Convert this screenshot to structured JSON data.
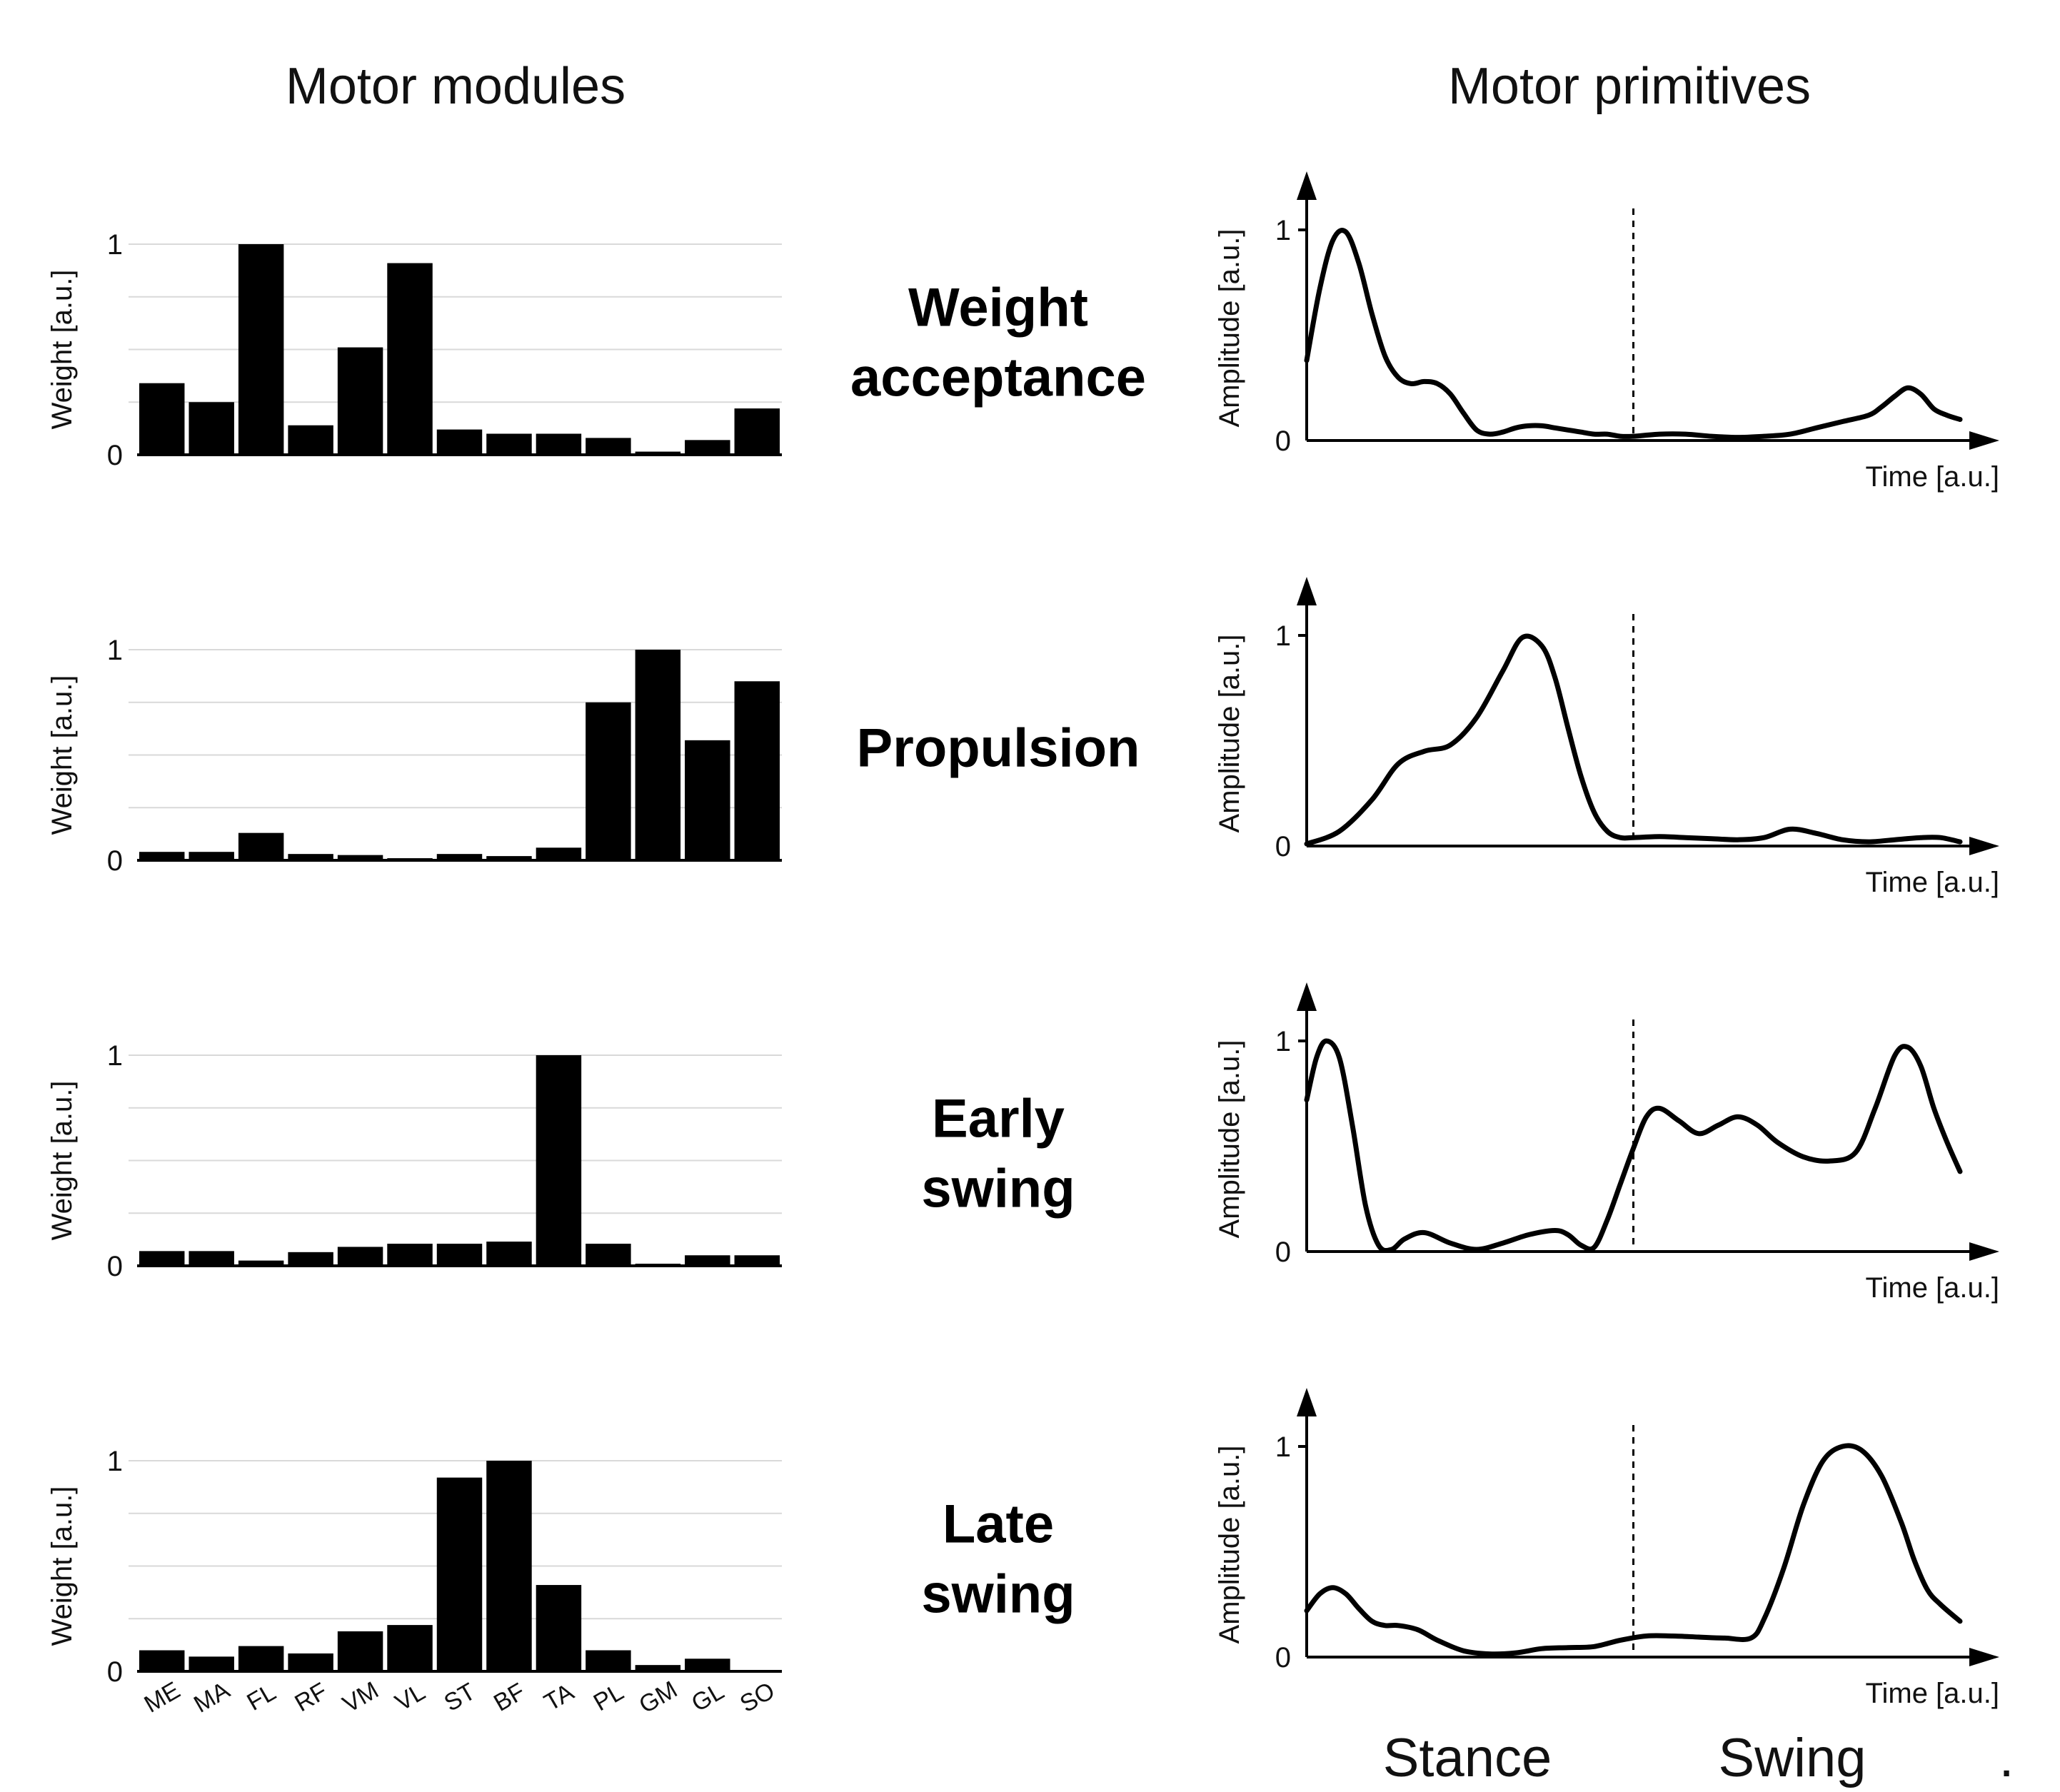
{
  "headers": {
    "left": "Motor modules",
    "right": "Motor primitives"
  },
  "phase_labels": [
    [
      "Weight",
      "acceptance"
    ],
    [
      "Propulsion"
    ],
    [
      "Early",
      "swing"
    ],
    [
      "Late",
      "swing"
    ]
  ],
  "bottom_labels": {
    "stance": "Stance",
    "swing": "Swing",
    "dot": "."
  },
  "chart_data": [
    {
      "type": "bar",
      "panel": "modules-weight-acceptance",
      "categories": [
        "ME",
        "MA",
        "FL",
        "RF",
        "VM",
        "VL",
        "ST",
        "BF",
        "TA",
        "PL",
        "GM",
        "GL",
        "SO"
      ],
      "values": [
        0.34,
        0.25,
        1.0,
        0.14,
        0.51,
        0.91,
        0.12,
        0.1,
        0.1,
        0.08,
        0.015,
        0.07,
        0.22
      ],
      "ylabel": "Weight [a.u.]",
      "yticks": [
        "0",
        "1"
      ],
      "ylim": [
        0,
        1
      ],
      "grid": true,
      "show_categories": false
    },
    {
      "type": "bar",
      "panel": "modules-propulsion",
      "categories": [
        "ME",
        "MA",
        "FL",
        "RF",
        "VM",
        "VL",
        "ST",
        "BF",
        "TA",
        "PL",
        "GM",
        "GL",
        "SO"
      ],
      "values": [
        0.04,
        0.04,
        0.13,
        0.03,
        0.025,
        0.01,
        0.03,
        0.02,
        0.06,
        0.75,
        1.0,
        0.57,
        0.85
      ],
      "ylabel": "Weight [a.u.]",
      "yticks": [
        "0",
        "1"
      ],
      "ylim": [
        0,
        1
      ],
      "grid": true,
      "show_categories": false
    },
    {
      "type": "bar",
      "panel": "modules-early-swing",
      "categories": [
        "ME",
        "MA",
        "FL",
        "RF",
        "VM",
        "VL",
        "ST",
        "BF",
        "TA",
        "PL",
        "GM",
        "GL",
        "SO"
      ],
      "values": [
        0.07,
        0.07,
        0.025,
        0.065,
        0.09,
        0.105,
        0.105,
        0.115,
        1.0,
        0.105,
        0.01,
        0.05,
        0.05
      ],
      "ylabel": "Weight [a.u.]",
      "yticks": [
        "0",
        "1"
      ],
      "ylim": [
        0,
        1
      ],
      "grid": true,
      "show_categories": false
    },
    {
      "type": "bar",
      "panel": "modules-late-swing",
      "categories": [
        "ME",
        "MA",
        "FL",
        "RF",
        "VM",
        "VL",
        "ST",
        "BF",
        "TA",
        "PL",
        "GM",
        "GL",
        "SO"
      ],
      "values": [
        0.1,
        0.07,
        0.12,
        0.085,
        0.19,
        0.22,
        0.92,
        1.0,
        0.41,
        0.1,
        0.03,
        0.06,
        0.005
      ],
      "ylabel": "Weight [a.u.]",
      "yticks": [
        "0",
        "1"
      ],
      "ylim": [
        0,
        1
      ],
      "grid": true,
      "show_categories": true
    },
    {
      "type": "line",
      "panel": "primitive-weight-acceptance",
      "x": [
        0,
        0.02,
        0.04,
        0.06,
        0.08,
        0.1,
        0.12,
        0.14,
        0.16,
        0.18,
        0.2,
        0.22,
        0.24,
        0.26,
        0.28,
        0.3,
        0.32,
        0.34,
        0.36,
        0.38,
        0.4,
        0.42,
        0.44,
        0.46,
        0.48,
        0.5,
        0.54,
        0.58,
        0.62,
        0.66,
        0.7,
        0.74,
        0.78,
        0.82,
        0.86,
        0.88,
        0.9,
        0.92,
        0.94,
        0.96,
        0.98,
        1.0
      ],
      "y": [
        0.38,
        0.72,
        0.95,
        0.99,
        0.84,
        0.6,
        0.4,
        0.3,
        0.27,
        0.28,
        0.27,
        0.22,
        0.13,
        0.05,
        0.03,
        0.04,
        0.06,
        0.07,
        0.07,
        0.06,
        0.05,
        0.04,
        0.03,
        0.03,
        0.02,
        0.02,
        0.03,
        0.03,
        0.02,
        0.015,
        0.02,
        0.03,
        0.06,
        0.09,
        0.12,
        0.16,
        0.21,
        0.25,
        0.22,
        0.15,
        0.12,
        0.1
      ],
      "ylabel": "Amplitude [a.u.]",
      "xlabel": "Time [a.u.]",
      "yticks": [
        "0",
        "1"
      ],
      "ylim": [
        0,
        1
      ],
      "divider_x": 0.5
    },
    {
      "type": "line",
      "panel": "primitive-propulsion",
      "x": [
        0,
        0.05,
        0.1,
        0.14,
        0.18,
        0.22,
        0.26,
        0.3,
        0.33,
        0.36,
        0.38,
        0.4,
        0.42,
        0.44,
        0.46,
        0.48,
        0.5,
        0.54,
        0.58,
        0.62,
        0.66,
        0.7,
        0.74,
        0.78,
        0.82,
        0.86,
        0.9,
        0.94,
        0.97,
        1.0
      ],
      "y": [
        0.01,
        0.07,
        0.22,
        0.39,
        0.45,
        0.48,
        0.61,
        0.83,
        0.99,
        0.95,
        0.8,
        0.56,
        0.33,
        0.16,
        0.07,
        0.04,
        0.04,
        0.045,
        0.04,
        0.035,
        0.03,
        0.04,
        0.08,
        0.06,
        0.03,
        0.02,
        0.03,
        0.04,
        0.04,
        0.02
      ],
      "ylabel": "Amplitude [a.u.]",
      "xlabel": "Time [a.u.]",
      "yticks": [
        "0",
        "1"
      ],
      "ylim": [
        0,
        1
      ],
      "divider_x": 0.5
    },
    {
      "type": "line",
      "panel": "primitive-early-swing",
      "x": [
        0,
        0.015,
        0.03,
        0.05,
        0.07,
        0.09,
        0.11,
        0.13,
        0.15,
        0.18,
        0.22,
        0.26,
        0.3,
        0.34,
        0.38,
        0.4,
        0.42,
        0.44,
        0.46,
        0.48,
        0.5,
        0.52,
        0.54,
        0.57,
        0.6,
        0.63,
        0.66,
        0.69,
        0.72,
        0.76,
        0.8,
        0.84,
        0.87,
        0.9,
        0.92,
        0.94,
        0.96,
        0.98,
        1.0
      ],
      "y": [
        0.72,
        0.92,
        1.0,
        0.92,
        0.6,
        0.22,
        0.03,
        0.01,
        0.06,
        0.09,
        0.04,
        0.01,
        0.04,
        0.08,
        0.1,
        0.08,
        0.03,
        0.02,
        0.15,
        0.32,
        0.49,
        0.64,
        0.68,
        0.62,
        0.56,
        0.6,
        0.64,
        0.6,
        0.52,
        0.45,
        0.43,
        0.47,
        0.68,
        0.93,
        0.97,
        0.88,
        0.68,
        0.52,
        0.38
      ],
      "ylabel": "Amplitude [a.u.]",
      "xlabel": "Time [a.u.]",
      "yticks": [
        "0",
        "1"
      ],
      "ylim": [
        0,
        1
      ],
      "divider_x": 0.5
    },
    {
      "type": "line",
      "panel": "primitive-late-swing",
      "x": [
        0,
        0.02,
        0.04,
        0.06,
        0.08,
        0.1,
        0.12,
        0.14,
        0.17,
        0.2,
        0.24,
        0.28,
        0.32,
        0.36,
        0.4,
        0.44,
        0.48,
        0.52,
        0.56,
        0.6,
        0.64,
        0.68,
        0.7,
        0.73,
        0.76,
        0.79,
        0.82,
        0.85,
        0.88,
        0.91,
        0.93,
        0.95,
        0.97,
        1.0
      ],
      "y": [
        0.22,
        0.3,
        0.33,
        0.3,
        0.23,
        0.17,
        0.15,
        0.15,
        0.13,
        0.08,
        0.03,
        0.015,
        0.02,
        0.04,
        0.045,
        0.05,
        0.08,
        0.1,
        0.1,
        0.095,
        0.09,
        0.09,
        0.18,
        0.42,
        0.72,
        0.93,
        1.0,
        0.98,
        0.86,
        0.64,
        0.46,
        0.32,
        0.25,
        0.17
      ],
      "ylabel": "Amplitude [a.u.]",
      "xlabel": "Time [a.u.]",
      "yticks": [
        "0",
        "1"
      ],
      "ylim": [
        0,
        1
      ],
      "divider_x": 0.5
    }
  ]
}
